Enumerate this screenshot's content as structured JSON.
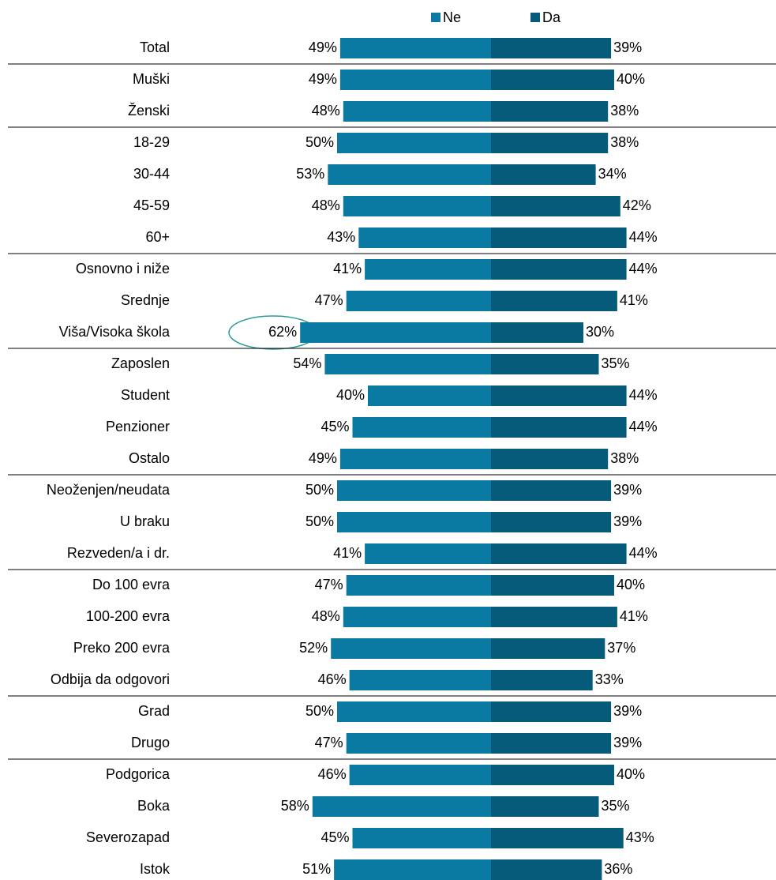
{
  "chart_data": {
    "type": "diverging-bar",
    "categories": [
      "Total",
      "Muški",
      "Ženski",
      "18-29",
      "30-44",
      "45-59",
      "60+",
      "Osnovno i niže",
      "Srednje",
      "Viša/Visoka škola",
      "Zaposlen",
      "Student",
      "Penzioner",
      "Ostalo",
      "Neoženjen/neudata",
      "U braku",
      "Rezveden/a i dr.",
      "Do 100 evra",
      "100-200 evra",
      "Preko 200 evra",
      "Odbija da odgovori",
      "Grad",
      "Drugo",
      "Podgorica",
      "Boka",
      "Severozapad",
      "Istok"
    ],
    "series": [
      {
        "name": "Ne",
        "color": "#0a7aa3",
        "values": [
          49,
          49,
          48,
          50,
          53,
          48,
          43,
          41,
          47,
          62,
          54,
          40,
          45,
          49,
          50,
          50,
          41,
          47,
          48,
          52,
          46,
          50,
          47,
          46,
          58,
          45,
          51
        ],
        "value_labels": [
          "49%",
          "49%",
          "48%",
          "50%",
          "53%",
          "48%",
          "43%",
          "41%",
          "47%",
          "62%",
          "54%",
          "40%",
          "45%",
          "49%",
          "50%",
          "50%",
          "41%",
          "47%",
          "48%",
          "52%",
          "46%",
          "50%",
          "47%",
          "46%",
          "58%",
          "45%",
          "51%"
        ]
      },
      {
        "name": "Da",
        "color": "#065a7a",
        "values": [
          39,
          40,
          38,
          38,
          34,
          42,
          44,
          44,
          41,
          30,
          35,
          44,
          44,
          38,
          39,
          39,
          44,
          40,
          41,
          37,
          33,
          39,
          39,
          40,
          35,
          43,
          36
        ],
        "value_labels": [
          "39%",
          "40%",
          "38%",
          "38%",
          "34%",
          "42%",
          "44%",
          "44%",
          "41%",
          "30%",
          "35%",
          "44%",
          "44%",
          "38%",
          "39%",
          "39%",
          "44%",
          "40%",
          "41%",
          "37%",
          "33%",
          "39%",
          "39%",
          "40%",
          "35%",
          "43%",
          "36%"
        ]
      }
    ]
  }
}
